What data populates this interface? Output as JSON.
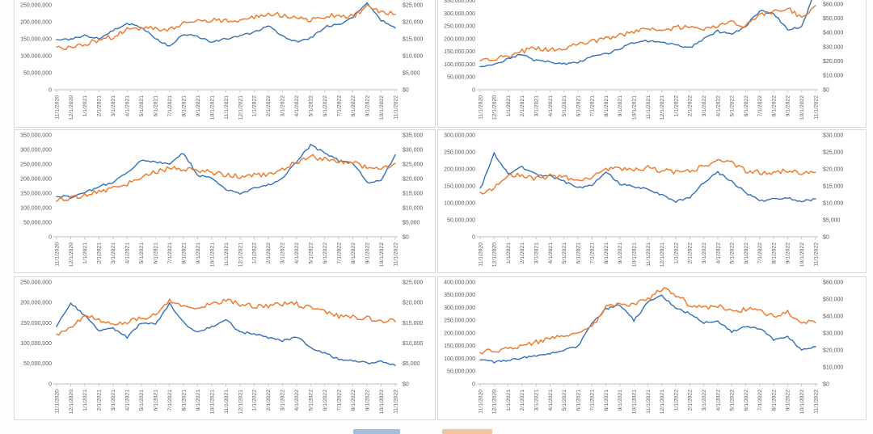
{
  "colors": {
    "series_blue": "#3470b5",
    "series_orange": "#ed7d31",
    "axis_text": "#595959",
    "axis_line": "#bfbfbf",
    "panel_border": "#d9d9d9"
  },
  "x_labels": [
    "11/1/2020",
    "12/1/2020",
    "1/1/2021",
    "2/1/2021",
    "3/1/2021",
    "4/1/2021",
    "5/1/2021",
    "6/1/2021",
    "7/1/2021",
    "8/1/2021",
    "9/1/2021",
    "10/1/2021",
    "11/1/2021",
    "12/1/2021",
    "1/1/2022",
    "2/1/2022",
    "3/1/2022",
    "4/1/2022",
    "5/1/2022",
    "6/1/2022",
    "7/1/2022",
    "8/1/2022",
    "9/1/2022",
    "10/1/2022",
    "11/1/2022"
  ],
  "legend": {
    "clipped_at_bottom": true,
    "items": [
      {
        "name": "blue-series-swatch",
        "color": "#3470b5"
      },
      {
        "name": "orange-series-swatch",
        "color": "#ed7d31"
      }
    ]
  },
  "chart_data": [
    {
      "type": "line",
      "position": "top-left",
      "top_cropped": true,
      "left_axis": {
        "max": 300000000,
        "step": 50000000,
        "labels": [
          "250,000,000",
          "200,000,000",
          "150,000,000",
          "100,000,000",
          "50,000,000",
          "0"
        ]
      },
      "right_axis": {
        "max": 30000,
        "step": 5000,
        "labels": [
          "$25,000",
          "$20,000",
          "$15,000",
          "$10,000",
          "$5,000",
          "$0"
        ]
      },
      "series": [
        {
          "name": "blue",
          "axis": "left",
          "unit": "millions",
          "values": [
            145,
            150,
            160,
            150,
            175,
            195,
            185,
            150,
            128,
            165,
            155,
            140,
            150,
            158,
            170,
            188,
            160,
            140,
            152,
            185,
            192,
            215,
            258,
            205,
            182
          ]
        },
        {
          "name": "orange",
          "axis": "right",
          "unit": "USD",
          "values": [
            12000,
            12600,
            13500,
            14600,
            15600,
            17600,
            18200,
            18000,
            17500,
            19500,
            21000,
            20400,
            20600,
            20000,
            21500,
            22500,
            22000,
            21000,
            20500,
            21500,
            22000,
            21600,
            24600,
            23000,
            22200
          ]
        }
      ]
    },
    {
      "type": "line",
      "position": "top-right",
      "top_cropped": true,
      "left_axis": {
        "max": 400000000,
        "step": 50000000,
        "labels": [
          "350,000,000",
          "300,000,000",
          "250,000,000",
          "200,000,000",
          "150,000,000",
          "100,000,000",
          "50,000,000",
          "0"
        ]
      },
      "right_axis": {
        "max": 60000,
        "step": 10000,
        "labels": [
          "$60,000",
          "$50,000",
          "$40,000",
          "$30,000",
          "$20,000",
          "$10,000",
          "$0"
        ]
      },
      "series": [
        {
          "name": "blue",
          "axis": "left",
          "unit": "millions",
          "values": [
            90,
            100,
            122,
            140,
            113,
            110,
            100,
            106,
            130,
            140,
            162,
            186,
            192,
            186,
            175,
            165,
            200,
            230,
            215,
            250,
            310,
            300,
            237,
            247,
            395
          ]
        },
        {
          "name": "orange",
          "axis": "right",
          "unit": "USD",
          "values": [
            20000,
            21500,
            23500,
            27000,
            29000,
            28000,
            29500,
            32000,
            33500,
            36000,
            38500,
            40500,
            43000,
            42000,
            43500,
            44000,
            42500,
            45500,
            47000,
            44500,
            52000,
            55000,
            56500,
            51000,
            59000
          ]
        }
      ]
    },
    {
      "type": "line",
      "position": "middle-left",
      "top_cropped": false,
      "left_axis": {
        "max": 350000000,
        "step": 50000000,
        "labels": [
          "350,000,000",
          "300,000,000",
          "250,000,000",
          "200,000,000",
          "150,000,000",
          "100,000,000",
          "50,000,000",
          "0"
        ]
      },
      "right_axis": {
        "max": 35000,
        "step": 5000,
        "labels": [
          "$35,000",
          "$30,000",
          "$25,000",
          "$20,000",
          "$15,000",
          "$10,000",
          "$5,000",
          "$0"
        ]
      },
      "series": [
        {
          "name": "blue",
          "axis": "left",
          "unit": "millions",
          "values": [
            140,
            136,
            152,
            172,
            188,
            222,
            262,
            258,
            252,
            288,
            212,
            200,
            165,
            146,
            166,
            178,
            202,
            256,
            315,
            288,
            262,
            254,
            186,
            196,
            282
          ]
        },
        {
          "name": "orange",
          "axis": "right",
          "unit": "USD",
          "values": [
            12600,
            13200,
            14200,
            15600,
            16800,
            18200,
            20200,
            22200,
            23600,
            23200,
            23000,
            22000,
            21400,
            20600,
            21000,
            21600,
            23200,
            25600,
            27600,
            26600,
            26000,
            25400,
            23600,
            23200,
            25200
          ]
        }
      ]
    },
    {
      "type": "line",
      "position": "middle-right",
      "top_cropped": false,
      "left_axis": {
        "max": 300000000,
        "step": 50000000,
        "labels": [
          "300,000,000",
          "250,000,000",
          "200,000,000",
          "150,000,000",
          "100,000,000",
          "50,000,000",
          "0"
        ]
      },
      "right_axis": {
        "max": 30000,
        "step": 5000,
        "labels": [
          "$30,000",
          "$25,000",
          "$20,000",
          "$15,000",
          "$10,000",
          "$5,000",
          "$0"
        ]
      },
      "series": [
        {
          "name": "blue",
          "axis": "left",
          "unit": "millions",
          "values": [
            140,
            245,
            187,
            205,
            183,
            178,
            163,
            145,
            152,
            193,
            155,
            148,
            140,
            122,
            104,
            116,
            160,
            190,
            163,
            130,
            106,
            110,
            114,
            104,
            112
          ]
        },
        {
          "name": "orange",
          "axis": "right",
          "unit": "USD",
          "values": [
            12500,
            14200,
            18400,
            17900,
            17200,
            17900,
            17600,
            17000,
            17500,
            19900,
            20000,
            19900,
            20400,
            19500,
            19000,
            19600,
            20600,
            22600,
            21900,
            19500,
            19000,
            19000,
            19400,
            18600,
            19000
          ]
        }
      ]
    },
    {
      "type": "line",
      "position": "bottom-left",
      "top_cropped": false,
      "left_axis": {
        "max": 250000000,
        "step": 50000000,
        "labels": [
          "250,000,000",
          "200,000,000",
          "150,000,000",
          "100,000,000",
          "50,000,000",
          "0"
        ]
      },
      "right_axis": {
        "max": 25000,
        "step": 5000,
        "labels": [
          "$25,000",
          "$20,000",
          "$15,000",
          "$10,000",
          "$5,000",
          "$0"
        ]
      },
      "series": [
        {
          "name": "blue",
          "axis": "left",
          "unit": "millions",
          "values": [
            140,
            198,
            168,
            130,
            136,
            114,
            150,
            146,
            198,
            150,
            126,
            141,
            158,
            126,
            124,
            114,
            106,
            116,
            90,
            76,
            61,
            56,
            51,
            55,
            45
          ]
        },
        {
          "name": "orange",
          "axis": "right",
          "unit": "USD",
          "values": [
            12100,
            13600,
            17100,
            15600,
            14600,
            15100,
            16100,
            17100,
            20300,
            19100,
            18600,
            19600,
            20600,
            19600,
            19100,
            19100,
            19600,
            19600,
            18600,
            17600,
            16600,
            16400,
            16100,
            15600,
            15300
          ]
        }
      ]
    },
    {
      "type": "line",
      "position": "bottom-right",
      "top_cropped": false,
      "left_axis": {
        "max": 400000000,
        "step": 50000000,
        "labels": [
          "400,000,000",
          "350,000,000",
          "300,000,000",
          "250,000,000",
          "200,000,000",
          "150,000,000",
          "100,000,000",
          "50,000,000",
          "0"
        ]
      },
      "right_axis": {
        "max": 60000,
        "step": 10000,
        "labels": [
          "$60,000",
          "$50,000",
          "$40,000",
          "$30,000",
          "$20,000",
          "$10,000",
          "$0"
        ]
      },
      "series": [
        {
          "name": "blue",
          "axis": "left",
          "unit": "millions",
          "values": [
            95,
            86,
            92,
            104,
            111,
            117,
            135,
            148,
            235,
            295,
            310,
            250,
            320,
            345,
            300,
            275,
            240,
            245,
            205,
            228,
            218,
            175,
            185,
            135,
            146
          ]
        },
        {
          "name": "orange",
          "axis": "right",
          "unit": "USD",
          "values": [
            19000,
            19500,
            20500,
            23000,
            24500,
            26500,
            28500,
            30000,
            33500,
            45000,
            48000,
            46500,
            50000,
            56000,
            52500,
            46500,
            44500,
            46000,
            42000,
            44000,
            43500,
            39500,
            42500,
            36500,
            36000
          ]
        }
      ]
    }
  ]
}
